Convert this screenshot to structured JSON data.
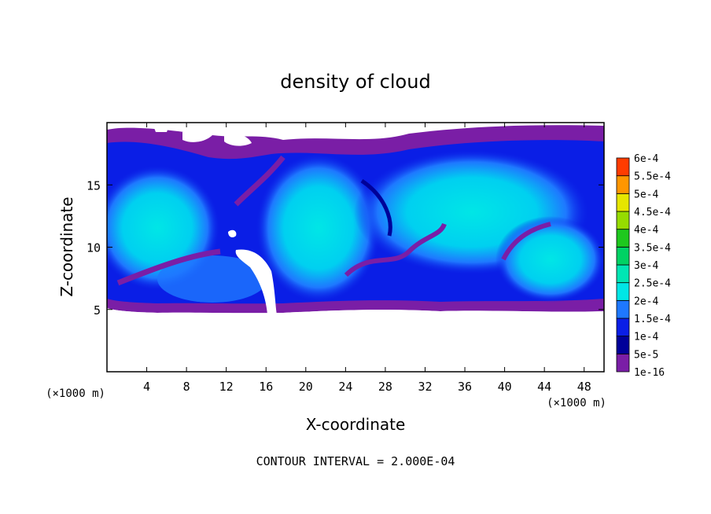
{
  "chart_data": {
    "type": "heatmap",
    "title": "density of cloud",
    "xlabel": "X-coordinate",
    "ylabel": "Z-coordinate",
    "x_unit": "(×1000 m)",
    "y_unit": "(×1000 m)",
    "xlim": [
      0,
      50
    ],
    "ylim": [
      0,
      20
    ],
    "x_ticks": [
      4,
      8,
      12,
      16,
      20,
      24,
      28,
      32,
      36,
      40,
      44,
      48
    ],
    "x_tick_labels": [
      "4",
      "8",
      "12",
      "16",
      "20",
      "24",
      "28",
      "32",
      "36",
      "40",
      "44",
      "48"
    ],
    "y_ticks": [
      5,
      10,
      15
    ],
    "y_tick_labels": [
      "5",
      "10",
      "15"
    ],
    "colorbar": {
      "levels": [
        "1e-16",
        "5e-5",
        "1e-4",
        "1.5e-4",
        "2e-4",
        "2.5e-4",
        "3e-4",
        "3.5e-4",
        "4e-4",
        "4.5e-4",
        "5e-4",
        "5.5e-4",
        "6e-4"
      ],
      "colors": [
        "#7a1ea6",
        "#000099",
        "#0a1ee6",
        "#1e78ff",
        "#00e6e6",
        "#00e6b4",
        "#00d264",
        "#1ec81e",
        "#96dc00",
        "#e6e600",
        "#ff9600",
        "#ff3c00",
        "#ff7070"
      ]
    },
    "field_description": "cloud region spans roughly z = 5 to 19.5 km across x = 0 to 50 km, clear below z = 5",
    "grid": false,
    "legend_position": "right colorbar"
  },
  "footer": {
    "contour_interval": "CONTOUR INTERVAL = 2.000E-04"
  }
}
